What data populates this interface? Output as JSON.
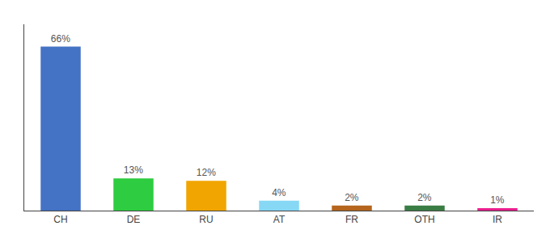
{
  "chart_data": {
    "type": "bar",
    "categories": [
      "CH",
      "DE",
      "RU",
      "AT",
      "FR",
      "OTH",
      "IR"
    ],
    "values": [
      66,
      13,
      12,
      4,
      2,
      2,
      1
    ],
    "value_labels": [
      "66%",
      "13%",
      "12%",
      "4%",
      "2%",
      "2%",
      "1%"
    ],
    "data_labels": true,
    "colors": [
      "#4472c4",
      "#2ecc40",
      "#f0a500",
      "#87d8f5",
      "#b5651d",
      "#3a7d44",
      "#e91e8c"
    ],
    "ylim": [
      0,
      75
    ],
    "grid": false,
    "tick_labels": "x"
  }
}
